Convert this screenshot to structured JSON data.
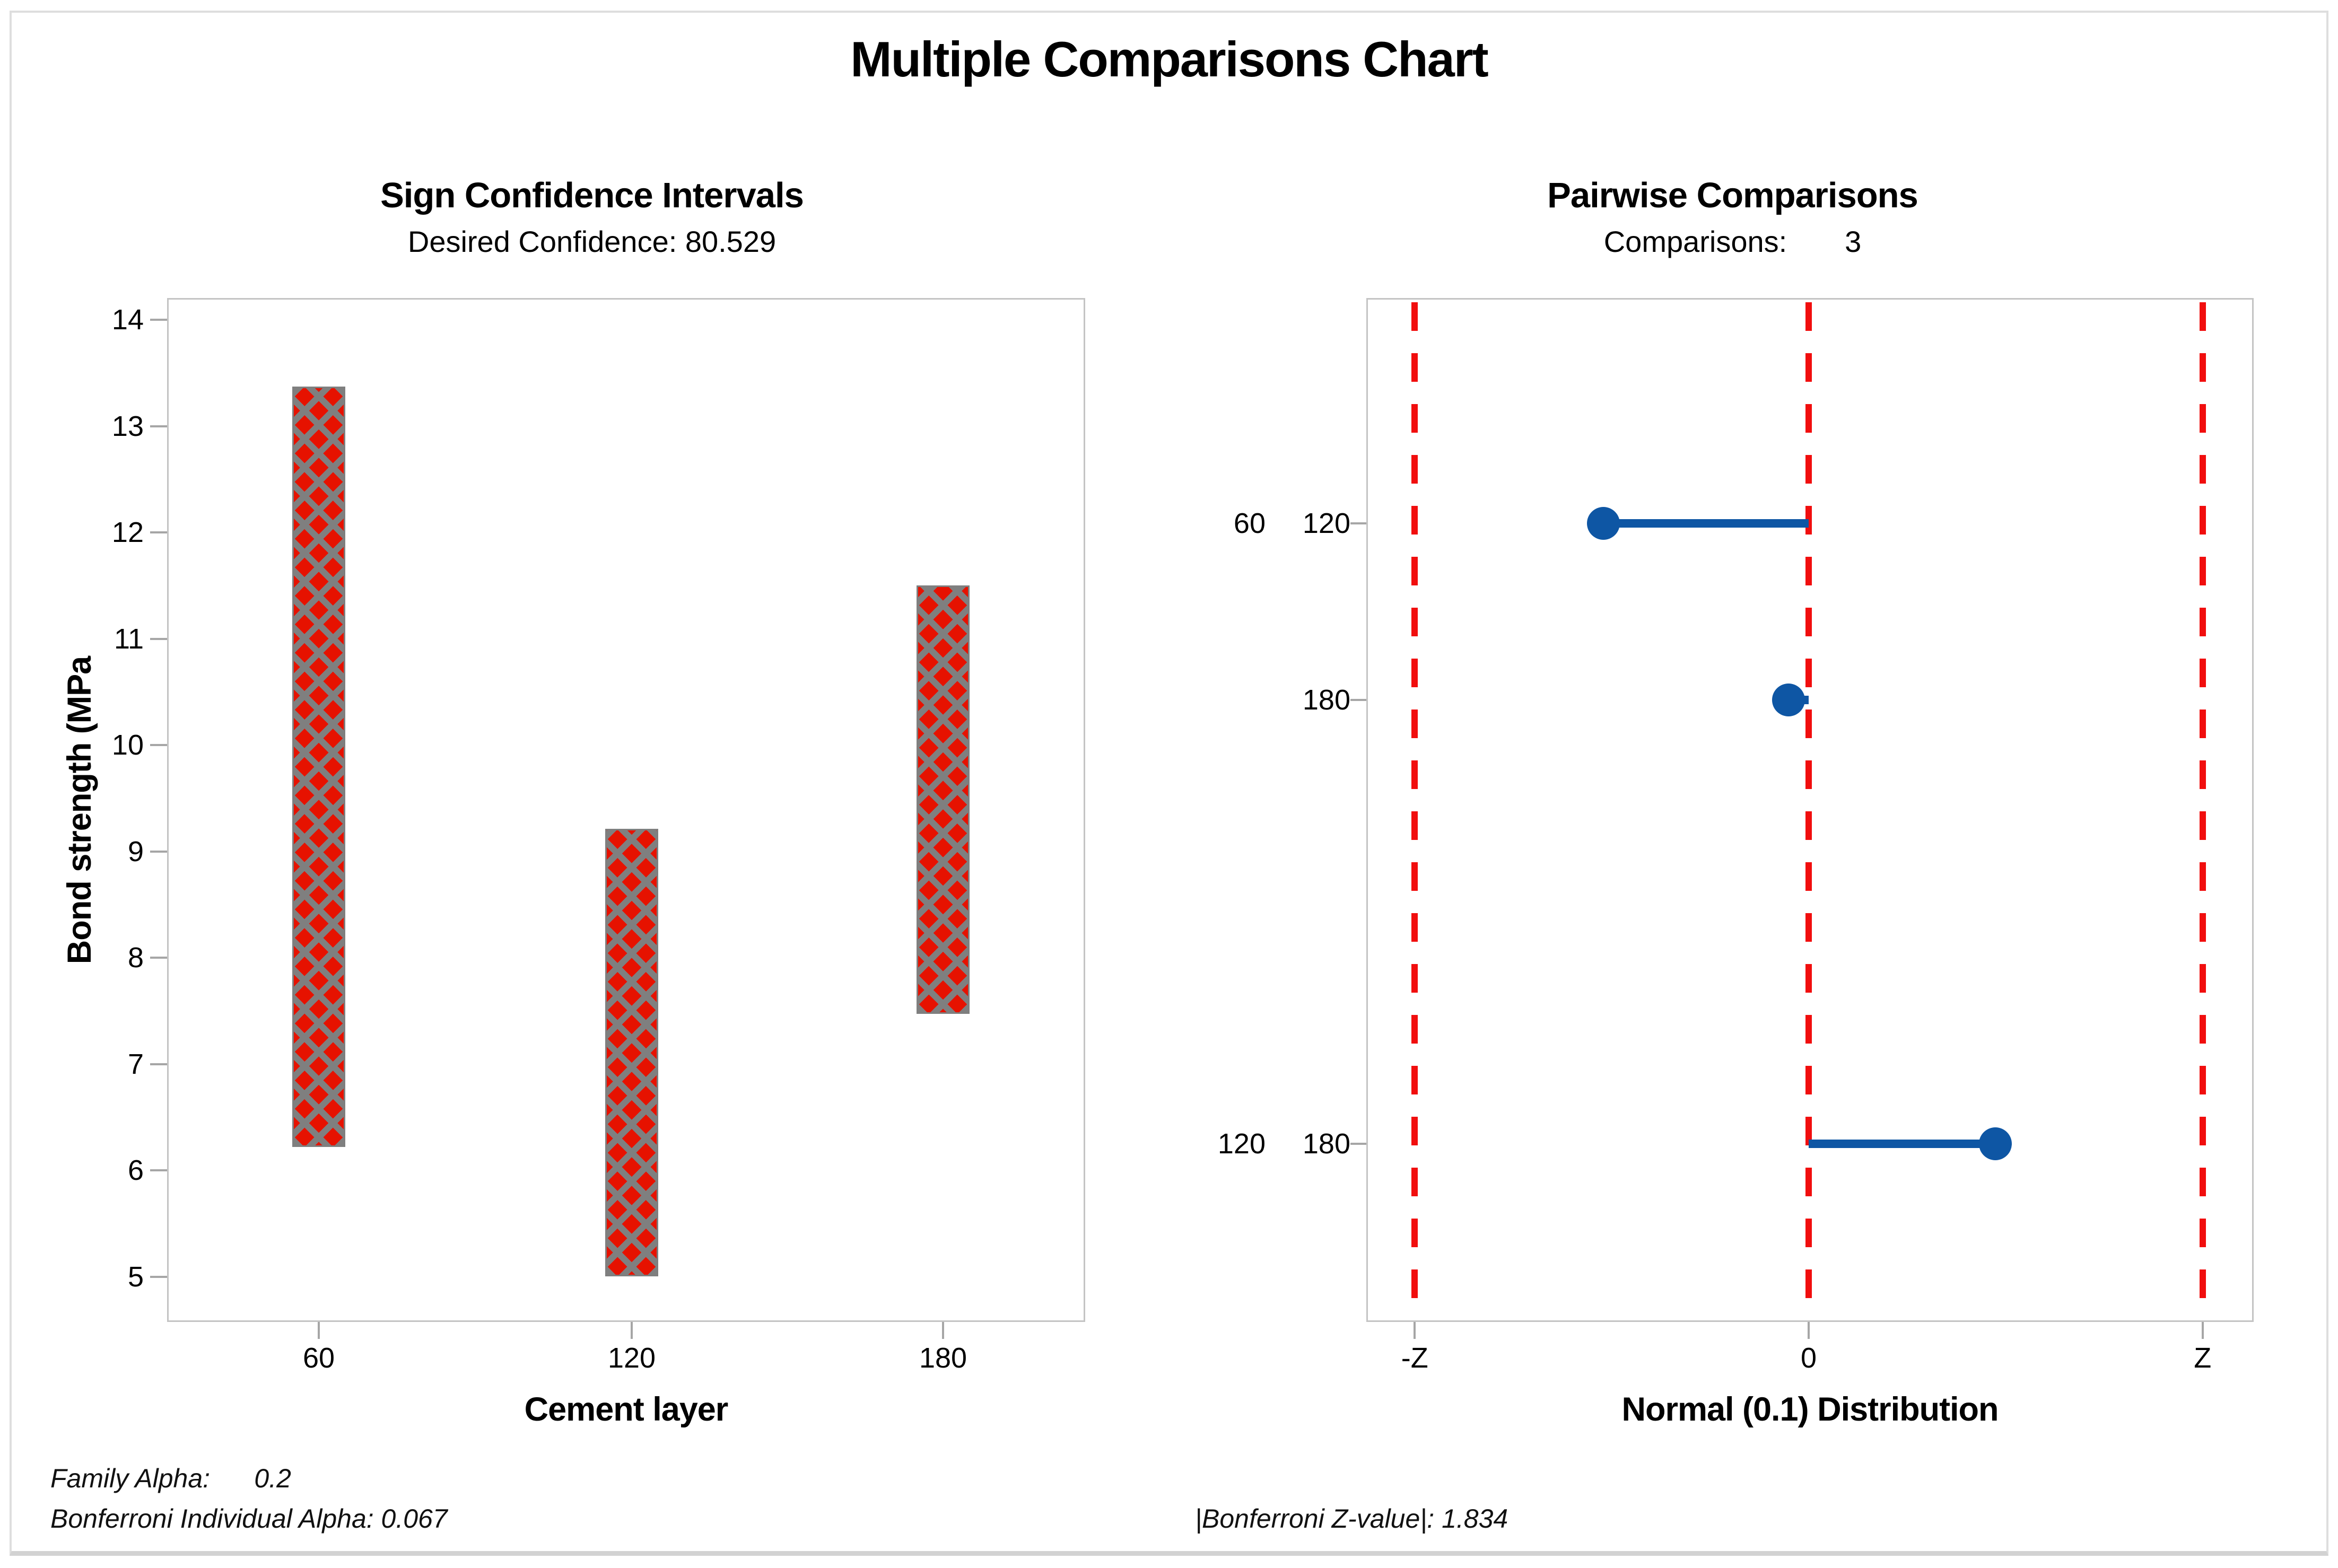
{
  "figure": {
    "title": "Multiple Comparisons Chart"
  },
  "colors": {
    "interval_fill": "#e61200",
    "hatch_gray": "#7f7f7f",
    "marker_blue": "#0e56a4",
    "dashed_red": "#f10e0e",
    "axis_gray": "#c4c4c4"
  },
  "footnotes": {
    "family_alpha": "Family Alpha:      0.2",
    "bonferroni_individual_alpha": "Bonferroni Individual Alpha: 0.067",
    "bonferroni_z_value": "|Bonferroni Z-value|: 1.834"
  },
  "chart_data": [
    {
      "type": "bar",
      "panel": "left",
      "title": "Sign Confidence Intervals",
      "subtitle": "Desired Confidence: 80.529",
      "xlabel": "Cement layer",
      "ylabel": "Bond strength (MPa",
      "categories": [
        "60",
        "120",
        "180"
      ],
      "series": [
        {
          "name": "sign-confidence-interval",
          "intervals": [
            [
              6.22,
              13.37
            ],
            [
              5.0,
              9.21
            ],
            [
              7.47,
              11.5
            ]
          ]
        }
      ],
      "yticks": [
        14,
        13,
        12,
        11,
        10,
        9,
        8,
        7,
        6,
        5
      ],
      "ylim": [
        4.58,
        14.2
      ],
      "grid": "off",
      "bar_style": "red fill with gray crosshatch"
    },
    {
      "type": "scatter",
      "panel": "right",
      "title": "Pairwise Comparisons",
      "subtitle": "Comparisons:       3",
      "xlabel": "Normal (0.1) Distribution",
      "xticks": [
        {
          "label": "-Z",
          "z": -1.834
        },
        {
          "label": "0",
          "z": 0
        },
        {
          "label": "Z",
          "z": 1.834
        }
      ],
      "reference_lines": {
        "neg_z": -1.834,
        "zero": 0,
        "pos_z": 1.834
      },
      "rows": [
        {
          "labels": [
            "60",
            "120"
          ],
          "z": -0.955
        },
        {
          "labels": [
            "",
            "180"
          ],
          "z": -0.095
        },
        {
          "labels": [
            "120",
            "180"
          ],
          "z": 0.87
        }
      ],
      "xlim": [
        -2.06,
        2.07
      ]
    }
  ]
}
